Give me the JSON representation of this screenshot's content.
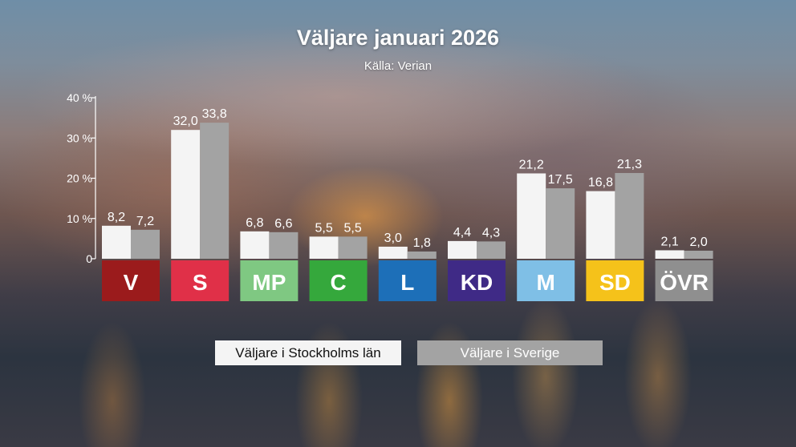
{
  "title": "Väljare januari 2026",
  "source": "Källa: Verian",
  "chart_data": {
    "type": "bar",
    "title": "Väljare januari 2026",
    "subtitle": "Källa: Verian",
    "categories": [
      "V",
      "S",
      "MP",
      "C",
      "L",
      "KD",
      "M",
      "SD",
      "ÖVR"
    ],
    "category_colors": [
      "#9b1b1c",
      "#e03048",
      "#7fc882",
      "#35a83c",
      "#1d6fb8",
      "#3f2a86",
      "#7fbfe6",
      "#f5c21a",
      "#8f8f8f"
    ],
    "series": [
      {
        "name": "Väljare i Stockholms län",
        "color": "#f4f4f4",
        "values": [
          8.2,
          32.0,
          6.8,
          5.5,
          3.0,
          4.4,
          21.2,
          16.8,
          2.1
        ],
        "labels": [
          "8,2",
          "32,0",
          "6,8",
          "5,5",
          "3,0",
          "4,4",
          "21,2",
          "16,8",
          "2,1"
        ]
      },
      {
        "name": "Väljare i Sverige",
        "color": "#a3a3a3",
        "values": [
          7.2,
          33.8,
          6.6,
          5.5,
          1.8,
          4.3,
          17.5,
          21.3,
          2.0
        ],
        "labels": [
          "7,2",
          "33,8",
          "6,6",
          "5,5",
          "1,8",
          "4,3",
          "17,5",
          "21,3",
          "2,0"
        ]
      }
    ],
    "ylim": [
      0,
      40
    ],
    "yticks": [
      0,
      10,
      20,
      30,
      40
    ],
    "ytick_labels": [
      "0",
      "10 %",
      "20 %",
      "30 %",
      "40 %"
    ],
    "grid": false,
    "legend_position": "bottom"
  }
}
